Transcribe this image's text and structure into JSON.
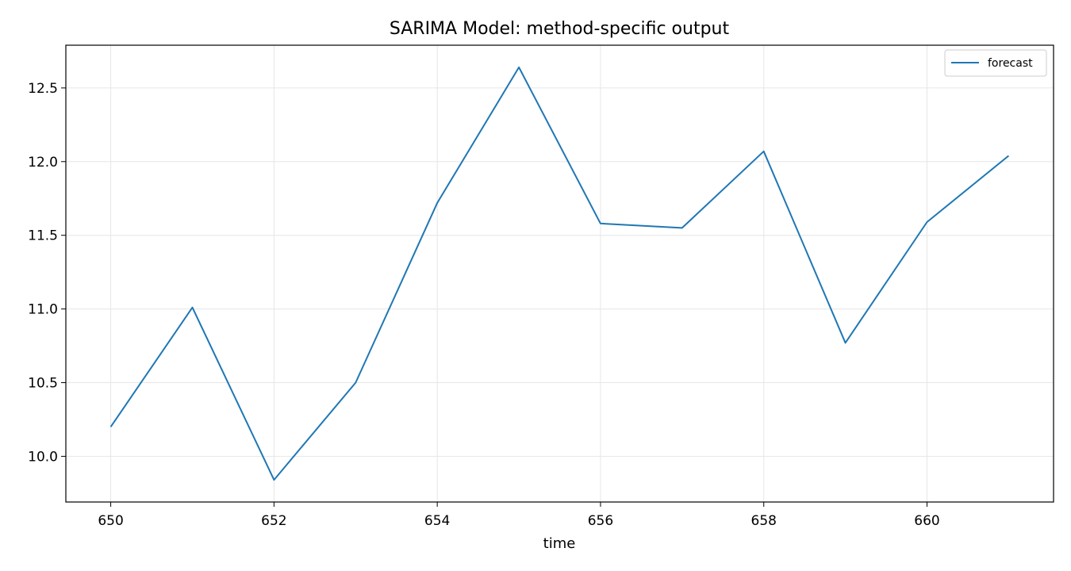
{
  "chart_data": {
    "type": "line",
    "title": "SARIMA Model: method-specific output",
    "xlabel": "time",
    "ylabel": "",
    "x": [
      650,
      651,
      652,
      653,
      654,
      655,
      656,
      657,
      658,
      659,
      660,
      661
    ],
    "series": [
      {
        "name": "forecast",
        "color": "#1f77b4",
        "values": [
          10.2,
          11.01,
          9.84,
          10.5,
          11.72,
          12.64,
          11.58,
          11.55,
          12.07,
          10.77,
          11.59,
          12.04
        ]
      }
    ],
    "xlim": [
      649.45,
      661.55
    ],
    "ylim": [
      9.69,
      12.79
    ],
    "xticks": [
      650,
      652,
      654,
      656,
      658,
      660
    ],
    "xtick_labels": [
      "650",
      "652",
      "654",
      "656",
      "658",
      "660"
    ],
    "yticks": [
      10.0,
      10.5,
      11.0,
      11.5,
      12.0,
      12.5
    ],
    "ytick_labels": [
      "10.0",
      "10.5",
      "11.0",
      "11.5",
      "12.0",
      "12.5"
    ],
    "grid": true,
    "legend_position": "top-right"
  }
}
